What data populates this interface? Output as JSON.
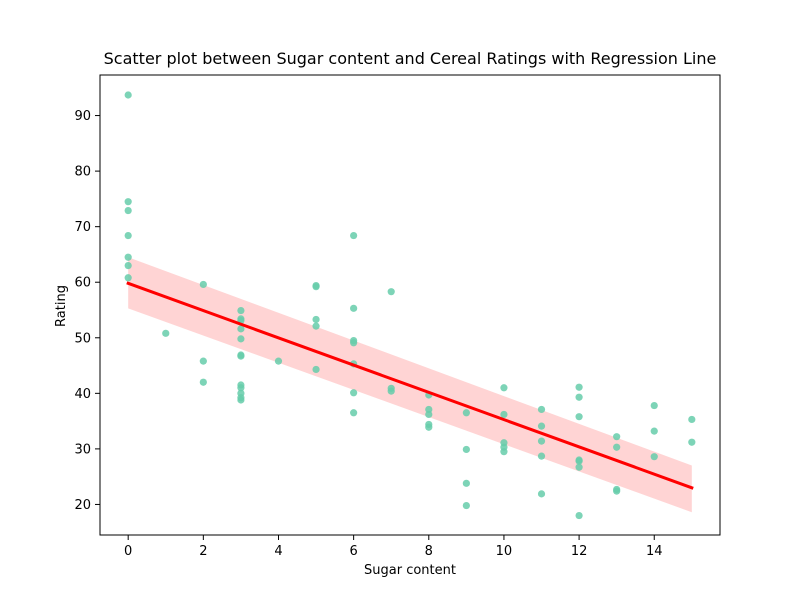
{
  "chart_data": {
    "type": "scatter",
    "title": "Scatter plot between Sugar content and Cereal Ratings with Regression Line",
    "xlabel": "Sugar content",
    "ylabel": "Rating",
    "xlim": [
      -0.75,
      15.75
    ],
    "ylim": [
      14.5,
      97.3
    ],
    "xticks": [
      0,
      2,
      4,
      6,
      8,
      10,
      12,
      14
    ],
    "yticks": [
      20,
      30,
      40,
      50,
      60,
      70,
      80,
      90
    ],
    "grid": false,
    "colors": {
      "points": "#66cdaa",
      "regression": "#ff0000",
      "band": "#ffcccc"
    },
    "points": [
      [
        0,
        93.7
      ],
      [
        0,
        74.5
      ],
      [
        0,
        72.9
      ],
      [
        0,
        68.4
      ],
      [
        0,
        64.5
      ],
      [
        0,
        63.0
      ],
      [
        0,
        60.8
      ],
      [
        1,
        50.8
      ],
      [
        2,
        59.6
      ],
      [
        2,
        45.8
      ],
      [
        2,
        42.0
      ],
      [
        3,
        54.9
      ],
      [
        3,
        53.4
      ],
      [
        3,
        53.1
      ],
      [
        3,
        51.6
      ],
      [
        3,
        49.8
      ],
      [
        3,
        46.9
      ],
      [
        3,
        46.7
      ],
      [
        3,
        41.5
      ],
      [
        3,
        41.0
      ],
      [
        3,
        40.0
      ],
      [
        3,
        39.2
      ],
      [
        3,
        38.8
      ],
      [
        4,
        45.8
      ],
      [
        5,
        59.4
      ],
      [
        5,
        59.2
      ],
      [
        5,
        53.3
      ],
      [
        5,
        52.1
      ],
      [
        5,
        44.3
      ],
      [
        6,
        68.4
      ],
      [
        6,
        55.3
      ],
      [
        6,
        49.5
      ],
      [
        6,
        49.1
      ],
      [
        6,
        45.3
      ],
      [
        6,
        40.1
      ],
      [
        6,
        36.5
      ],
      [
        7,
        58.3
      ],
      [
        7,
        40.9
      ],
      [
        7,
        40.4
      ],
      [
        8,
        39.7
      ],
      [
        8,
        37.1
      ],
      [
        8,
        36.2
      ],
      [
        8,
        34.4
      ],
      [
        8,
        33.9
      ],
      [
        9,
        36.5
      ],
      [
        9,
        29.9
      ],
      [
        9,
        23.8
      ],
      [
        9,
        19.8
      ],
      [
        10,
        41.0
      ],
      [
        10,
        36.2
      ],
      [
        10,
        31.1
      ],
      [
        10,
        30.3
      ],
      [
        10,
        29.5
      ],
      [
        11,
        37.1
      ],
      [
        11,
        34.1
      ],
      [
        11,
        31.4
      ],
      [
        11,
        28.7
      ],
      [
        11,
        21.9
      ],
      [
        12,
        41.1
      ],
      [
        12,
        39.3
      ],
      [
        12,
        35.8
      ],
      [
        12,
        28.0
      ],
      [
        12,
        27.8
      ],
      [
        12,
        26.7
      ],
      [
        12,
        18.0
      ],
      [
        13,
        32.2
      ],
      [
        13,
        30.3
      ],
      [
        13,
        22.7
      ],
      [
        13,
        22.4
      ],
      [
        14,
        37.8
      ],
      [
        14,
        33.2
      ],
      [
        14,
        28.6
      ],
      [
        15,
        35.3
      ],
      [
        15,
        31.2
      ]
    ],
    "regression": {
      "start": [
        0,
        59.8
      ],
      "end": [
        15,
        23.0
      ],
      "ci_upper": [
        [
          0,
          64.5
        ],
        [
          15,
          27.0
        ]
      ],
      "ci_lower": [
        [
          0,
          55.3
        ],
        [
          15,
          18.6
        ]
      ]
    }
  }
}
